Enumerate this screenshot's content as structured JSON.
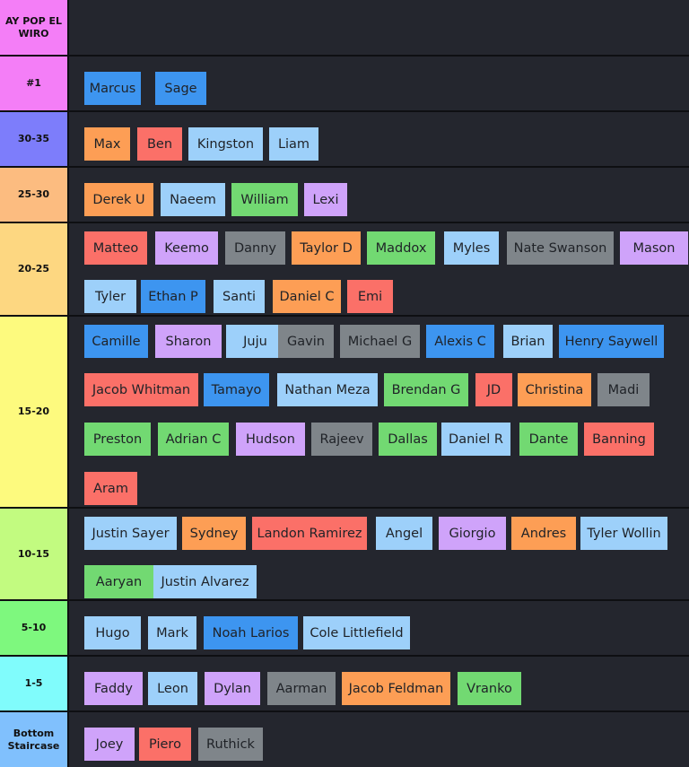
{
  "colors": {
    "blue": "#3d95f0",
    "orange": "#fd9e55",
    "red": "#fb7068",
    "lightblue": "#9dd0fa",
    "green": "#72d972",
    "purple": "#cfa3fa",
    "gray": "#7f858a"
  },
  "tiers": [
    {
      "label": "AY POP EL WIRO",
      "color": "#f47ef7",
      "items": []
    },
    {
      "label": "#1",
      "color": "#f47ef7",
      "items": [
        {
          "name": "Marcus",
          "color": "blue"
        },
        {
          "name": "Sage",
          "color": "blue"
        }
      ]
    },
    {
      "label": "30-35",
      "color": "#7d7dfb",
      "items": [
        {
          "name": "Max",
          "color": "orange"
        },
        {
          "name": "Ben",
          "color": "red"
        },
        {
          "name": "Kingston",
          "color": "lightblue"
        },
        {
          "name": "Liam",
          "color": "lightblue"
        }
      ]
    },
    {
      "label": "25-30",
      "color": "#fcbc80",
      "items": [
        {
          "name": "Derek U",
          "color": "orange"
        },
        {
          "name": "Naeem",
          "color": "lightblue"
        },
        {
          "name": "William",
          "color": "green"
        },
        {
          "name": "Lexi",
          "color": "purple"
        }
      ]
    },
    {
      "label": "20-25",
      "color": "#fdd781",
      "items": [
        {
          "name": "Matteo",
          "color": "red"
        },
        {
          "name": "Keemo",
          "color": "purple"
        },
        {
          "name": "Danny",
          "color": "gray"
        },
        {
          "name": "Taylor D",
          "color": "orange"
        },
        {
          "name": "Maddox",
          "color": "green"
        },
        {
          "name": "Myles",
          "color": "lightblue"
        },
        {
          "name": "Nate Swanson",
          "color": "gray"
        },
        {
          "name": "Mason",
          "color": "purple"
        },
        {
          "name": "Tyler",
          "color": "lightblue"
        },
        {
          "name": "Ethan P",
          "color": "blue"
        },
        {
          "name": "Santi",
          "color": "lightblue"
        },
        {
          "name": "Daniel C",
          "color": "orange"
        },
        {
          "name": "Emi",
          "color": "red"
        }
      ]
    },
    {
      "label": "15-20",
      "color": "#fdfa7e",
      "items": [
        {
          "name": "Camille",
          "color": "blue"
        },
        {
          "name": "Sharon",
          "color": "purple"
        },
        {
          "name": "Juju",
          "color": "lightblue"
        },
        {
          "name": "Gavin",
          "color": "gray"
        },
        {
          "name": "Michael G",
          "color": "gray"
        },
        {
          "name": "Alexis C",
          "color": "blue"
        },
        {
          "name": "Brian",
          "color": "lightblue"
        },
        {
          "name": "Henry Saywell",
          "color": "blue"
        },
        {
          "name": "Jacob Whitman",
          "color": "red"
        },
        {
          "name": "Tamayo",
          "color": "blue"
        },
        {
          "name": "Nathan Meza",
          "color": "lightblue"
        },
        {
          "name": "Brendan G",
          "color": "green"
        },
        {
          "name": "JD",
          "color": "red"
        },
        {
          "name": "Christina",
          "color": "orange"
        },
        {
          "name": "Madi",
          "color": "gray"
        },
        {
          "name": "Preston",
          "color": "green"
        },
        {
          "name": "Adrian C",
          "color": "green"
        },
        {
          "name": "Hudson",
          "color": "purple"
        },
        {
          "name": "Rajeev",
          "color": "gray"
        },
        {
          "name": "Dallas",
          "color": "green"
        },
        {
          "name": "Daniel R",
          "color": "lightblue"
        },
        {
          "name": "Dante",
          "color": "green"
        },
        {
          "name": "Banning",
          "color": "red"
        },
        {
          "name": "Aram",
          "color": "red"
        }
      ]
    },
    {
      "label": "10-15",
      "color": "#c2fb80",
      "items": [
        {
          "name": "Justin Sayer",
          "color": "lightblue"
        },
        {
          "name": "Sydney",
          "color": "orange"
        },
        {
          "name": "Landon Ramirez",
          "color": "red"
        },
        {
          "name": "Angel",
          "color": "lightblue"
        },
        {
          "name": "Giorgio",
          "color": "purple"
        },
        {
          "name": "Andres",
          "color": "orange"
        },
        {
          "name": "Tyler Wollin",
          "color": "lightblue"
        },
        {
          "name": "Aaryan",
          "color": "green"
        },
        {
          "name": "Justin Alvarez",
          "color": "lightblue"
        }
      ]
    },
    {
      "label": "5-10",
      "color": "#7ef87e",
      "items": [
        {
          "name": "Hugo",
          "color": "lightblue"
        },
        {
          "name": "Mark",
          "color": "lightblue"
        },
        {
          "name": "Noah Larios",
          "color": "blue"
        },
        {
          "name": "Cole Littlefield",
          "color": "lightblue"
        }
      ]
    },
    {
      "label": "1-5",
      "color": "#80fcfc",
      "items": [
        {
          "name": "Faddy",
          "color": "purple"
        },
        {
          "name": "Leon",
          "color": "lightblue"
        },
        {
          "name": "Dylan",
          "color": "purple"
        },
        {
          "name": "Aarman",
          "color": "gray"
        },
        {
          "name": "Jacob Feldman",
          "color": "orange"
        },
        {
          "name": "Vranko",
          "color": "green"
        }
      ]
    },
    {
      "label": "Bottom Staircase",
      "color": "#80c0fd",
      "items": [
        {
          "name": "Joey",
          "color": "purple"
        },
        {
          "name": "Piero",
          "color": "red"
        },
        {
          "name": "Ruthick",
          "color": "gray"
        }
      ]
    }
  ]
}
